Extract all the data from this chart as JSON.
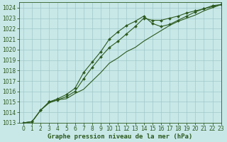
{
  "title": "Graphe pression niveau de la mer (hPa)",
  "background_color": "#c8e8e8",
  "plot_bg_color": "#c8e8e8",
  "grid_color": "#a0c8c8",
  "line_color": "#2d5a1e",
  "marker_color": "#2d5a1e",
  "xlim": [
    -0.5,
    23
  ],
  "ylim": [
    1013,
    1024.5
  ],
  "yticks": [
    1013,
    1014,
    1015,
    1016,
    1017,
    1018,
    1019,
    1020,
    1021,
    1022,
    1023,
    1024
  ],
  "xticks": [
    0,
    1,
    2,
    3,
    4,
    5,
    6,
    7,
    8,
    9,
    10,
    11,
    12,
    13,
    14,
    15,
    16,
    17,
    18,
    19,
    20,
    21,
    22,
    23
  ],
  "series1_x": [
    0,
    1,
    2,
    3,
    4,
    5,
    6,
    7,
    8,
    9,
    10,
    11,
    12,
    13,
    14,
    15,
    16,
    17,
    18,
    19,
    20,
    21,
    22,
    23
  ],
  "series1_y": [
    1013.0,
    1013.1,
    1014.2,
    1014.9,
    1015.2,
    1015.3,
    1015.8,
    1016.2,
    1017.0,
    1017.8,
    1018.7,
    1019.2,
    1019.8,
    1020.2,
    1020.8,
    1021.3,
    1021.8,
    1022.3,
    1022.7,
    1023.0,
    1023.3,
    1023.7,
    1024.0,
    1024.3
  ],
  "series2_x": [
    0,
    1,
    2,
    3,
    4,
    5,
    6,
    7,
    8,
    9,
    10,
    11,
    12,
    13,
    14,
    15,
    16,
    17,
    18,
    19,
    20,
    21,
    22,
    23
  ],
  "series2_y": [
    1013.0,
    1013.1,
    1014.2,
    1015.0,
    1015.2,
    1015.5,
    1016.0,
    1017.2,
    1018.3,
    1019.3,
    1020.2,
    1020.8,
    1021.5,
    1022.2,
    1023.0,
    1022.8,
    1022.8,
    1023.0,
    1023.2,
    1023.5,
    1023.7,
    1023.9,
    1024.1,
    1024.3
  ],
  "series3_x": [
    0,
    1,
    2,
    3,
    4,
    5,
    6,
    7,
    8,
    9,
    10,
    11,
    12,
    13,
    14,
    15,
    16,
    17,
    18,
    19,
    20,
    21,
    22,
    23
  ],
  "series3_y": [
    1013.0,
    1013.1,
    1014.2,
    1015.0,
    1015.3,
    1015.7,
    1016.3,
    1017.8,
    1018.8,
    1019.8,
    1021.0,
    1021.7,
    1022.3,
    1022.7,
    1023.2,
    1022.5,
    1022.2,
    1022.4,
    1022.8,
    1023.2,
    1023.6,
    1023.9,
    1024.2,
    1024.3
  ],
  "tick_fontsize": 5.5,
  "xlabel_fontsize": 6.5,
  "xlabel_fontweight": "bold"
}
